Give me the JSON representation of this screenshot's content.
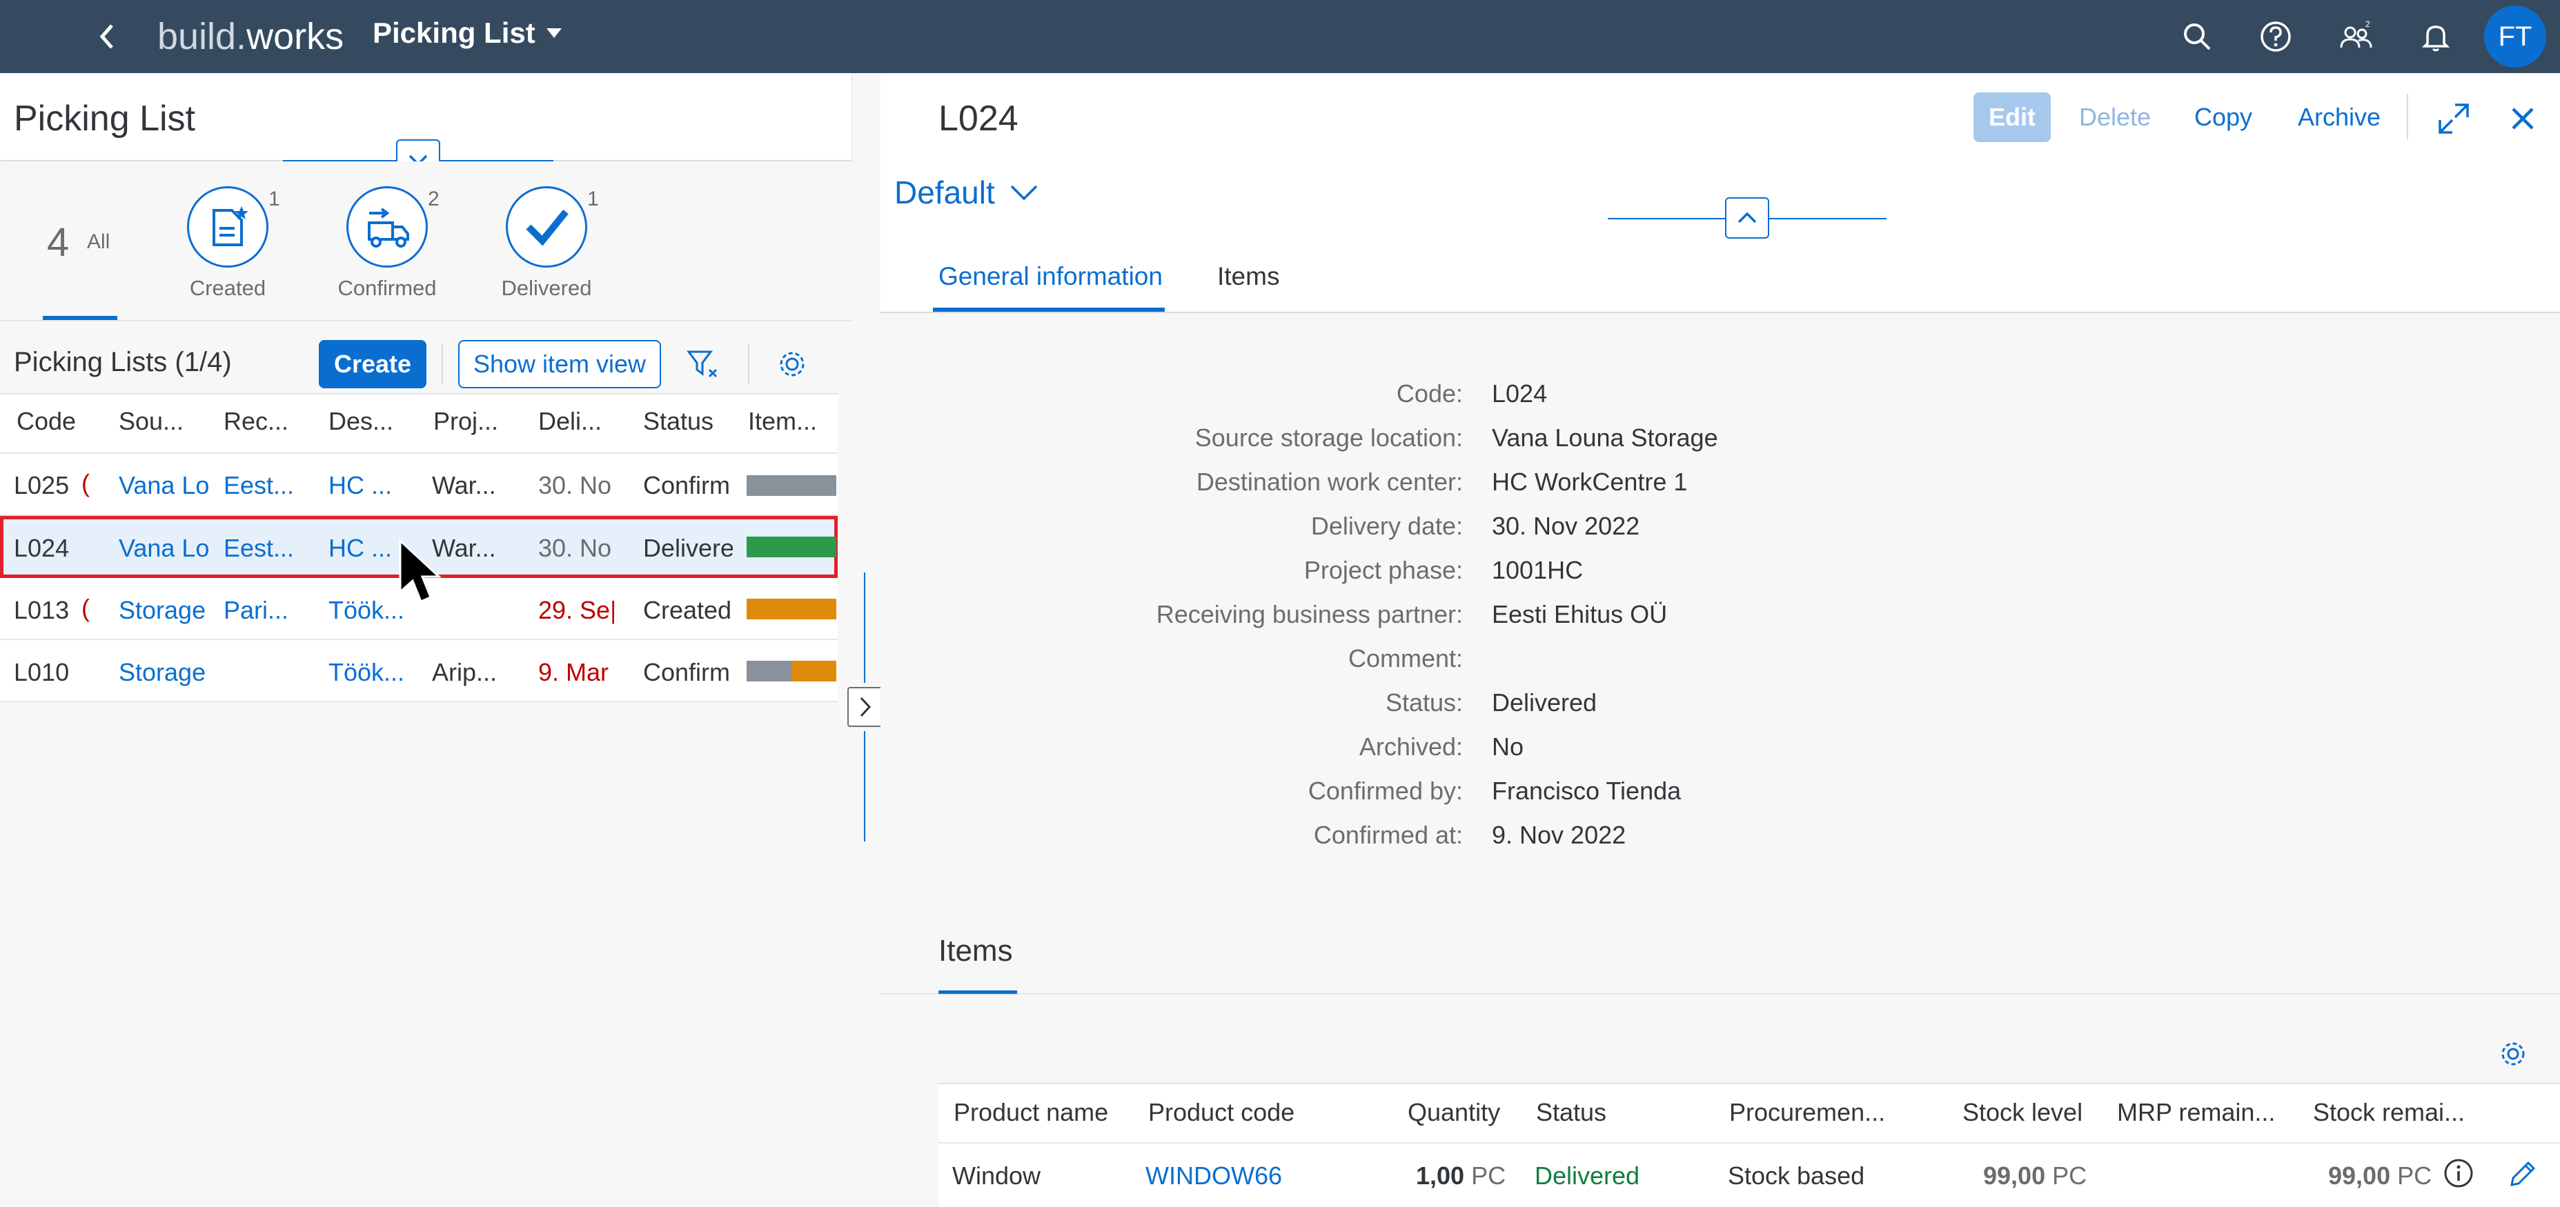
{
  "shell": {
    "logo_part1": "build.",
    "logo_part2": "works",
    "app_title": "Picking List",
    "avatar_initials": "FT"
  },
  "master": {
    "title": "Picking List",
    "filters": {
      "all_count": "4",
      "all_label": "All",
      "kpis": [
        {
          "label": "Created",
          "count": "1"
        },
        {
          "label": "Confirmed",
          "count": "2"
        },
        {
          "label": "Delivered",
          "count": "1"
        }
      ]
    },
    "table_title": "Picking Lists (1/4)",
    "create_label": "Create",
    "show_item_view_label": "Show item view",
    "columns": [
      "Code",
      "Sou...",
      "Rec...",
      "Des...",
      "Proj...",
      "Deli...",
      "Status",
      "Item..."
    ],
    "rows": [
      {
        "code": "L025",
        "source": "Vana Lo",
        "receiving": "Eest...",
        "destination": "HC ...",
        "project": "War...",
        "delivery": "30. No",
        "status": "Confirm"
      },
      {
        "code": "L024",
        "source": "Vana Lo",
        "receiving": "Eest...",
        "destination": "HC ...",
        "project": "War...",
        "delivery": "30. No",
        "status": "Delivere"
      },
      {
        "code": "L013",
        "source": "Storage",
        "receiving": "Pari...",
        "destination": "Töök...",
        "project": "",
        "delivery": "29. Se|",
        "status": "Created"
      },
      {
        "code": "L010",
        "source": "Storage",
        "receiving": "",
        "destination": "Töök...",
        "project": "Arip...",
        "delivery": "9. Mar",
        "status": "Confirm"
      }
    ],
    "item_bars": [
      [
        {
          "color": "#89919a",
          "fraction": 1.0
        }
      ],
      [
        {
          "color": "#2b9a4a",
          "fraction": 1.0
        }
      ],
      [
        {
          "color": "#e08a0c",
          "fraction": 1.0
        }
      ],
      [
        {
          "color": "#89919a",
          "fraction": 0.5
        },
        {
          "color": "#e08a0c",
          "fraction": 0.5
        }
      ]
    ]
  },
  "detail": {
    "title": "L024",
    "edit_label": "Edit",
    "delete_label": "Delete",
    "copy_label": "Copy",
    "archive_label": "Archive",
    "variant_label": "Default",
    "tabs": [
      "General information",
      "Items"
    ],
    "fields": [
      {
        "label": "Code:",
        "value": "L024",
        "link": false
      },
      {
        "label": "Source storage location:",
        "value": "Vana Louna Storage",
        "link": true
      },
      {
        "label": "Destination work center:",
        "value": "HC WorkCentre 1",
        "link": true
      },
      {
        "label": "Delivery date:",
        "value": "30. Nov 2022",
        "link": false
      },
      {
        "label": "Project phase:",
        "value": "1001HC",
        "link": false
      },
      {
        "label": "Receiving business partner:",
        "value": "Eesti Ehitus OÜ",
        "link": true
      },
      {
        "label": "Comment:",
        "value": "",
        "link": false
      },
      {
        "label": "Status:",
        "value": "Delivered",
        "link": false
      },
      {
        "label": "Archived:",
        "value": "No",
        "link": false
      },
      {
        "label": "Confirmed by:",
        "value": "Francisco Tienda",
        "link": true
      },
      {
        "label": "Confirmed at:",
        "value": "9. Nov 2022",
        "link": false
      }
    ],
    "items_section_title": "Items",
    "items_columns": [
      "Product name",
      "Product code",
      "Quantity",
      "Status",
      "Procuremen...",
      "Stock level",
      "MRP remain...",
      "Stock remai..."
    ],
    "items_rows": [
      {
        "product_name": "Window",
        "product_code": "WINDOW66",
        "quantity": "1,00",
        "quantity_unit": "PC",
        "status": "Delivered",
        "procurement": "Stock based",
        "stock_level": "99,00",
        "stock_level_unit": "PC",
        "mrp_remaining": "",
        "stock_remaining": "99,00",
        "stock_remaining_unit": "PC"
      }
    ]
  },
  "colors": {
    "shell": "#354a5f",
    "accent": "#0a6ed1",
    "selection_outline": "#e0202c",
    "negative": "#bb0000",
    "positive": "#107e3e"
  }
}
